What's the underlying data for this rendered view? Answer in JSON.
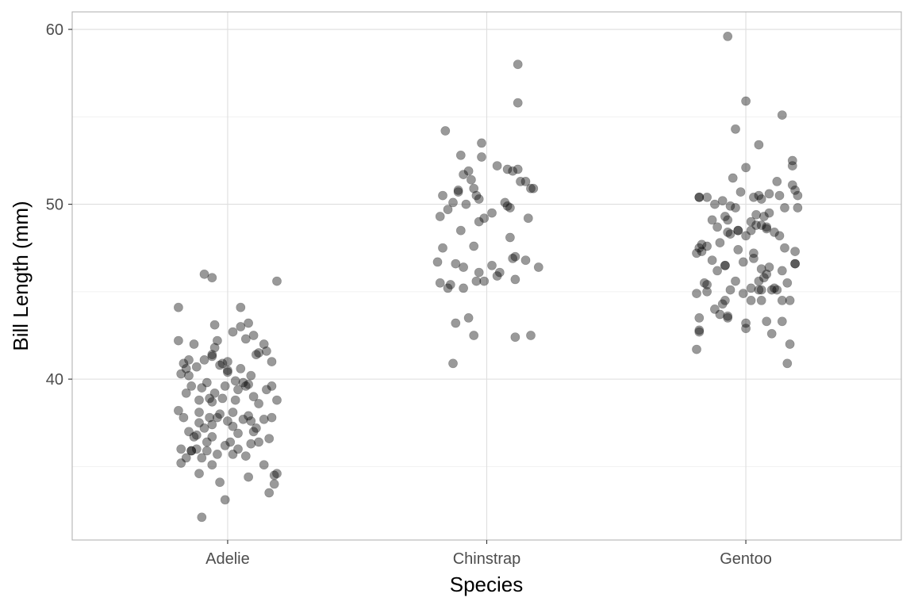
{
  "chart_data": {
    "type": "scatter",
    "title": "",
    "xlabel": "Species",
    "ylabel": "Bill Length (mm)",
    "categories": [
      "Adelie",
      "Chinstrap",
      "Gentoo"
    ],
    "ylim": [
      30.8,
      61.0
    ],
    "y_ticks": [
      40,
      50,
      60
    ],
    "y_minor_ticks": [
      35,
      45,
      55
    ],
    "y_tick_labels": [
      "40",
      "50",
      "60"
    ],
    "grid": true,
    "legend": "none",
    "point_color": "#000000",
    "point_alpha": 0.4,
    "jitter_width": 0.2,
    "series": [
      {
        "category": "Adelie",
        "points": [
          [
            -0.19,
            44.1
          ],
          [
            -0.09,
            46.0
          ],
          [
            -0.06,
            45.8
          ],
          [
            0.19,
            45.6
          ],
          [
            -0.19,
            42.2
          ],
          [
            0.05,
            44.1
          ],
          [
            0.02,
            42.7
          ],
          [
            0.08,
            43.2
          ],
          [
            0.05,
            43.0
          ],
          [
            0.07,
            42.3
          ],
          [
            0.1,
            42.5
          ],
          [
            -0.13,
            42.0
          ],
          [
            0.14,
            42.0
          ],
          [
            -0.05,
            43.1
          ],
          [
            -0.04,
            42.2
          ],
          [
            0.15,
            41.6
          ],
          [
            0.17,
            41.0
          ],
          [
            -0.15,
            41.1
          ],
          [
            -0.17,
            40.9
          ],
          [
            -0.12,
            40.7
          ],
          [
            -0.18,
            40.3
          ],
          [
            -0.15,
            40.2
          ],
          [
            -0.02,
            40.9
          ],
          [
            0.0,
            41.0
          ],
          [
            0.0,
            40.4
          ],
          [
            -0.01,
            39.6
          ],
          [
            0.05,
            40.6
          ],
          [
            0.06,
            39.8
          ],
          [
            0.09,
            40.2
          ],
          [
            0.11,
            41.4
          ],
          [
            0.12,
            41.5
          ],
          [
            -0.09,
            41.1
          ],
          [
            -0.06,
            41.4
          ],
          [
            -0.05,
            41.8
          ],
          [
            -0.03,
            40.8
          ],
          [
            -0.08,
            39.8
          ],
          [
            -0.1,
            39.5
          ],
          [
            -0.16,
            39.2
          ],
          [
            -0.14,
            39.6
          ],
          [
            -0.11,
            38.8
          ],
          [
            -0.07,
            38.9
          ],
          [
            -0.05,
            39.2
          ],
          [
            -0.02,
            38.9
          ],
          [
            0.02,
            38.1
          ],
          [
            0.03,
            38.8
          ],
          [
            0.07,
            39.6
          ],
          [
            0.08,
            39.7
          ],
          [
            0.1,
            39.0
          ],
          [
            0.12,
            38.6
          ],
          [
            0.17,
            39.6
          ],
          [
            0.19,
            38.8
          ],
          [
            -0.19,
            38.2
          ],
          [
            -0.17,
            37.8
          ],
          [
            -0.15,
            37.0
          ],
          [
            -0.13,
            36.7
          ],
          [
            -0.11,
            37.5
          ],
          [
            -0.11,
            38.1
          ],
          [
            -0.09,
            37.2
          ],
          [
            -0.06,
            37.4
          ],
          [
            -0.04,
            37.8
          ],
          [
            -0.03,
            38.0
          ],
          [
            0.0,
            37.6
          ],
          [
            0.02,
            37.3
          ],
          [
            0.04,
            36.9
          ],
          [
            0.06,
            37.7
          ],
          [
            0.08,
            37.9
          ],
          [
            0.09,
            37.6
          ],
          [
            0.11,
            37.2
          ],
          [
            0.14,
            37.7
          ],
          [
            0.17,
            37.8
          ],
          [
            -0.18,
            35.2
          ],
          [
            -0.16,
            35.5
          ],
          [
            -0.14,
            35.9
          ],
          [
            -0.12,
            36.0
          ],
          [
            -0.1,
            35.5
          ],
          [
            -0.08,
            35.9
          ],
          [
            -0.06,
            35.1
          ],
          [
            -0.04,
            35.7
          ],
          [
            -0.01,
            36.2
          ],
          [
            0.02,
            35.7
          ],
          [
            0.04,
            36.0
          ],
          [
            0.07,
            35.6
          ],
          [
            0.09,
            36.3
          ],
          [
            0.12,
            36.4
          ],
          [
            0.14,
            35.1
          ],
          [
            0.16,
            36.6
          ],
          [
            0.18,
            34.5
          ],
          [
            0.18,
            34.0
          ],
          [
            -0.11,
            34.6
          ],
          [
            -0.03,
            34.1
          ],
          [
            0.08,
            34.4
          ],
          [
            0.16,
            33.5
          ],
          [
            -0.01,
            33.1
          ],
          [
            -0.1,
            32.1
          ],
          [
            -0.06,
            36.7
          ],
          [
            -0.08,
            36.4
          ],
          [
            0.01,
            36.4
          ],
          [
            -0.16,
            40.6
          ],
          [
            0.15,
            39.4
          ],
          [
            -0.06,
            38.7
          ],
          [
            0.04,
            39.4
          ],
          [
            -0.14,
            35.9
          ],
          [
            0.1,
            37.0
          ],
          [
            -0.12,
            36.8
          ],
          [
            0.03,
            39.9
          ],
          [
            -0.06,
            41.3
          ],
          [
            0.0,
            40.5
          ],
          [
            -0.18,
            36.0
          ],
          [
            0.19,
            34.6
          ],
          [
            -0.07,
            37.8
          ]
        ]
      },
      {
        "category": "Chinstrap",
        "points": [
          [
            -0.16,
            54.2
          ],
          [
            0.12,
            58.0
          ],
          [
            0.12,
            55.8
          ],
          [
            -0.02,
            53.5
          ],
          [
            -0.1,
            52.8
          ],
          [
            -0.02,
            52.7
          ],
          [
            0.04,
            52.2
          ],
          [
            -0.09,
            51.7
          ],
          [
            -0.07,
            51.9
          ],
          [
            -0.06,
            51.4
          ],
          [
            0.12,
            52.0
          ],
          [
            0.1,
            51.9
          ],
          [
            0.15,
            51.3
          ],
          [
            0.13,
            51.3
          ],
          [
            0.17,
            50.9
          ],
          [
            0.18,
            50.9
          ],
          [
            -0.17,
            50.5
          ],
          [
            -0.11,
            50.7
          ],
          [
            -0.11,
            50.8
          ],
          [
            -0.05,
            50.9
          ],
          [
            -0.04,
            50.5
          ],
          [
            -0.03,
            50.3
          ],
          [
            -0.15,
            49.7
          ],
          [
            -0.18,
            49.3
          ],
          [
            -0.13,
            50.1
          ],
          [
            -0.08,
            50.0
          ],
          [
            0.02,
            49.5
          ],
          [
            0.07,
            50.1
          ],
          [
            0.09,
            49.8
          ],
          [
            0.16,
            49.2
          ],
          [
            0.08,
            49.9
          ],
          [
            -0.03,
            49.0
          ],
          [
            -0.1,
            48.5
          ],
          [
            -0.01,
            49.2
          ],
          [
            0.09,
            48.1
          ],
          [
            -0.17,
            47.5
          ],
          [
            -0.05,
            47.6
          ],
          [
            -0.19,
            46.7
          ],
          [
            -0.12,
            46.6
          ],
          [
            -0.09,
            46.4
          ],
          [
            -0.03,
            46.1
          ],
          [
            0.02,
            46.5
          ],
          [
            0.05,
            46.1
          ],
          [
            0.11,
            47.0
          ],
          [
            0.1,
            46.9
          ],
          [
            0.15,
            46.8
          ],
          [
            0.2,
            46.4
          ],
          [
            0.11,
            45.7
          ],
          [
            0.04,
            45.9
          ],
          [
            -0.01,
            45.6
          ],
          [
            -0.04,
            45.6
          ],
          [
            -0.09,
            45.2
          ],
          [
            -0.14,
            45.4
          ],
          [
            -0.18,
            45.5
          ],
          [
            -0.15,
            45.2
          ],
          [
            -0.12,
            43.2
          ],
          [
            -0.07,
            43.5
          ],
          [
            -0.05,
            42.5
          ],
          [
            0.11,
            42.4
          ],
          [
            0.17,
            42.5
          ],
          [
            -0.13,
            40.9
          ],
          [
            0.08,
            52.0
          ]
        ]
      },
      {
        "category": "Gentoo",
        "points": [
          [
            -0.07,
            59.6
          ],
          [
            0.0,
            55.9
          ],
          [
            0.14,
            55.1
          ],
          [
            -0.04,
            54.3
          ],
          [
            0.05,
            53.4
          ],
          [
            0.18,
            52.5
          ],
          [
            0.18,
            52.2
          ],
          [
            -0.05,
            51.5
          ],
          [
            0.0,
            52.1
          ],
          [
            0.12,
            51.3
          ],
          [
            0.18,
            51.1
          ],
          [
            0.19,
            50.8
          ],
          [
            0.2,
            50.5
          ],
          [
            0.13,
            50.5
          ],
          [
            -0.18,
            50.4
          ],
          [
            -0.18,
            50.4
          ],
          [
            -0.12,
            50.0
          ],
          [
            -0.09,
            50.2
          ],
          [
            -0.06,
            49.9
          ],
          [
            -0.04,
            49.8
          ],
          [
            -0.02,
            50.7
          ],
          [
            0.03,
            50.4
          ],
          [
            0.05,
            50.5
          ],
          [
            0.06,
            50.3
          ],
          [
            0.09,
            50.6
          ],
          [
            0.15,
            49.8
          ],
          [
            0.2,
            49.8
          ],
          [
            0.09,
            49.5
          ],
          [
            0.07,
            49.3
          ],
          [
            0.04,
            49.4
          ],
          [
            -0.07,
            49.1
          ],
          [
            -0.08,
            49.3
          ],
          [
            -0.13,
            49.1
          ],
          [
            -0.11,
            48.7
          ],
          [
            0.02,
            49.0
          ],
          [
            0.0,
            48.2
          ],
          [
            0.06,
            48.8
          ],
          [
            0.08,
            48.6
          ],
          [
            0.11,
            48.4
          ],
          [
            0.13,
            48.2
          ],
          [
            -0.19,
            47.2
          ],
          [
            -0.18,
            47.5
          ],
          [
            -0.17,
            47.7
          ],
          [
            -0.15,
            47.6
          ],
          [
            -0.1,
            47.8
          ],
          [
            -0.07,
            48.4
          ],
          [
            -0.06,
            48.3
          ],
          [
            -0.03,
            48.5
          ],
          [
            -0.03,
            48.5
          ],
          [
            0.02,
            48.5
          ],
          [
            0.04,
            48.8
          ],
          [
            0.08,
            48.7
          ],
          [
            -0.13,
            46.8
          ],
          [
            -0.11,
            46.2
          ],
          [
            -0.08,
            46.5
          ],
          [
            -0.08,
            46.5
          ],
          [
            -0.03,
            47.4
          ],
          [
            -0.01,
            46.7
          ],
          [
            0.03,
            46.9
          ],
          [
            0.03,
            47.2
          ],
          [
            0.09,
            46.4
          ],
          [
            0.08,
            46.0
          ],
          [
            0.07,
            45.8
          ],
          [
            0.05,
            45.6
          ],
          [
            0.05,
            45.1
          ],
          [
            0.02,
            45.2
          ],
          [
            0.06,
            45.1
          ],
          [
            0.1,
            45.1
          ],
          [
            0.12,
            45.1
          ],
          [
            0.14,
            46.2
          ],
          [
            0.16,
            45.5
          ],
          [
            0.19,
            46.6
          ],
          [
            0.19,
            46.6
          ],
          [
            0.19,
            47.3
          ],
          [
            0.15,
            47.5
          ],
          [
            -0.19,
            44.9
          ],
          [
            -0.16,
            45.5
          ],
          [
            -0.15,
            45.4
          ],
          [
            -0.15,
            45.0
          ],
          [
            -0.09,
            44.3
          ],
          [
            -0.06,
            45.1
          ],
          [
            -0.04,
            45.6
          ],
          [
            -0.01,
            44.9
          ],
          [
            0.02,
            44.5
          ],
          [
            0.06,
            44.5
          ],
          [
            0.14,
            44.5
          ],
          [
            0.17,
            44.5
          ],
          [
            -0.18,
            43.5
          ],
          [
            -0.18,
            42.8
          ],
          [
            -0.12,
            44.0
          ],
          [
            -0.1,
            43.7
          ],
          [
            -0.07,
            43.6
          ],
          [
            -0.07,
            43.5
          ],
          [
            0.0,
            43.2
          ],
          [
            0.08,
            43.3
          ],
          [
            0.14,
            43.3
          ],
          [
            -0.19,
            41.7
          ],
          [
            0.0,
            42.9
          ],
          [
            0.1,
            42.6
          ],
          [
            0.17,
            42.0
          ],
          [
            0.16,
            40.9
          ],
          [
            -0.18,
            42.7
          ],
          [
            -0.08,
            44.5
          ],
          [
            0.11,
            45.2
          ],
          [
            0.06,
            46.3
          ],
          [
            -0.17,
            47.3
          ],
          [
            -0.15,
            50.4
          ]
        ]
      }
    ]
  }
}
